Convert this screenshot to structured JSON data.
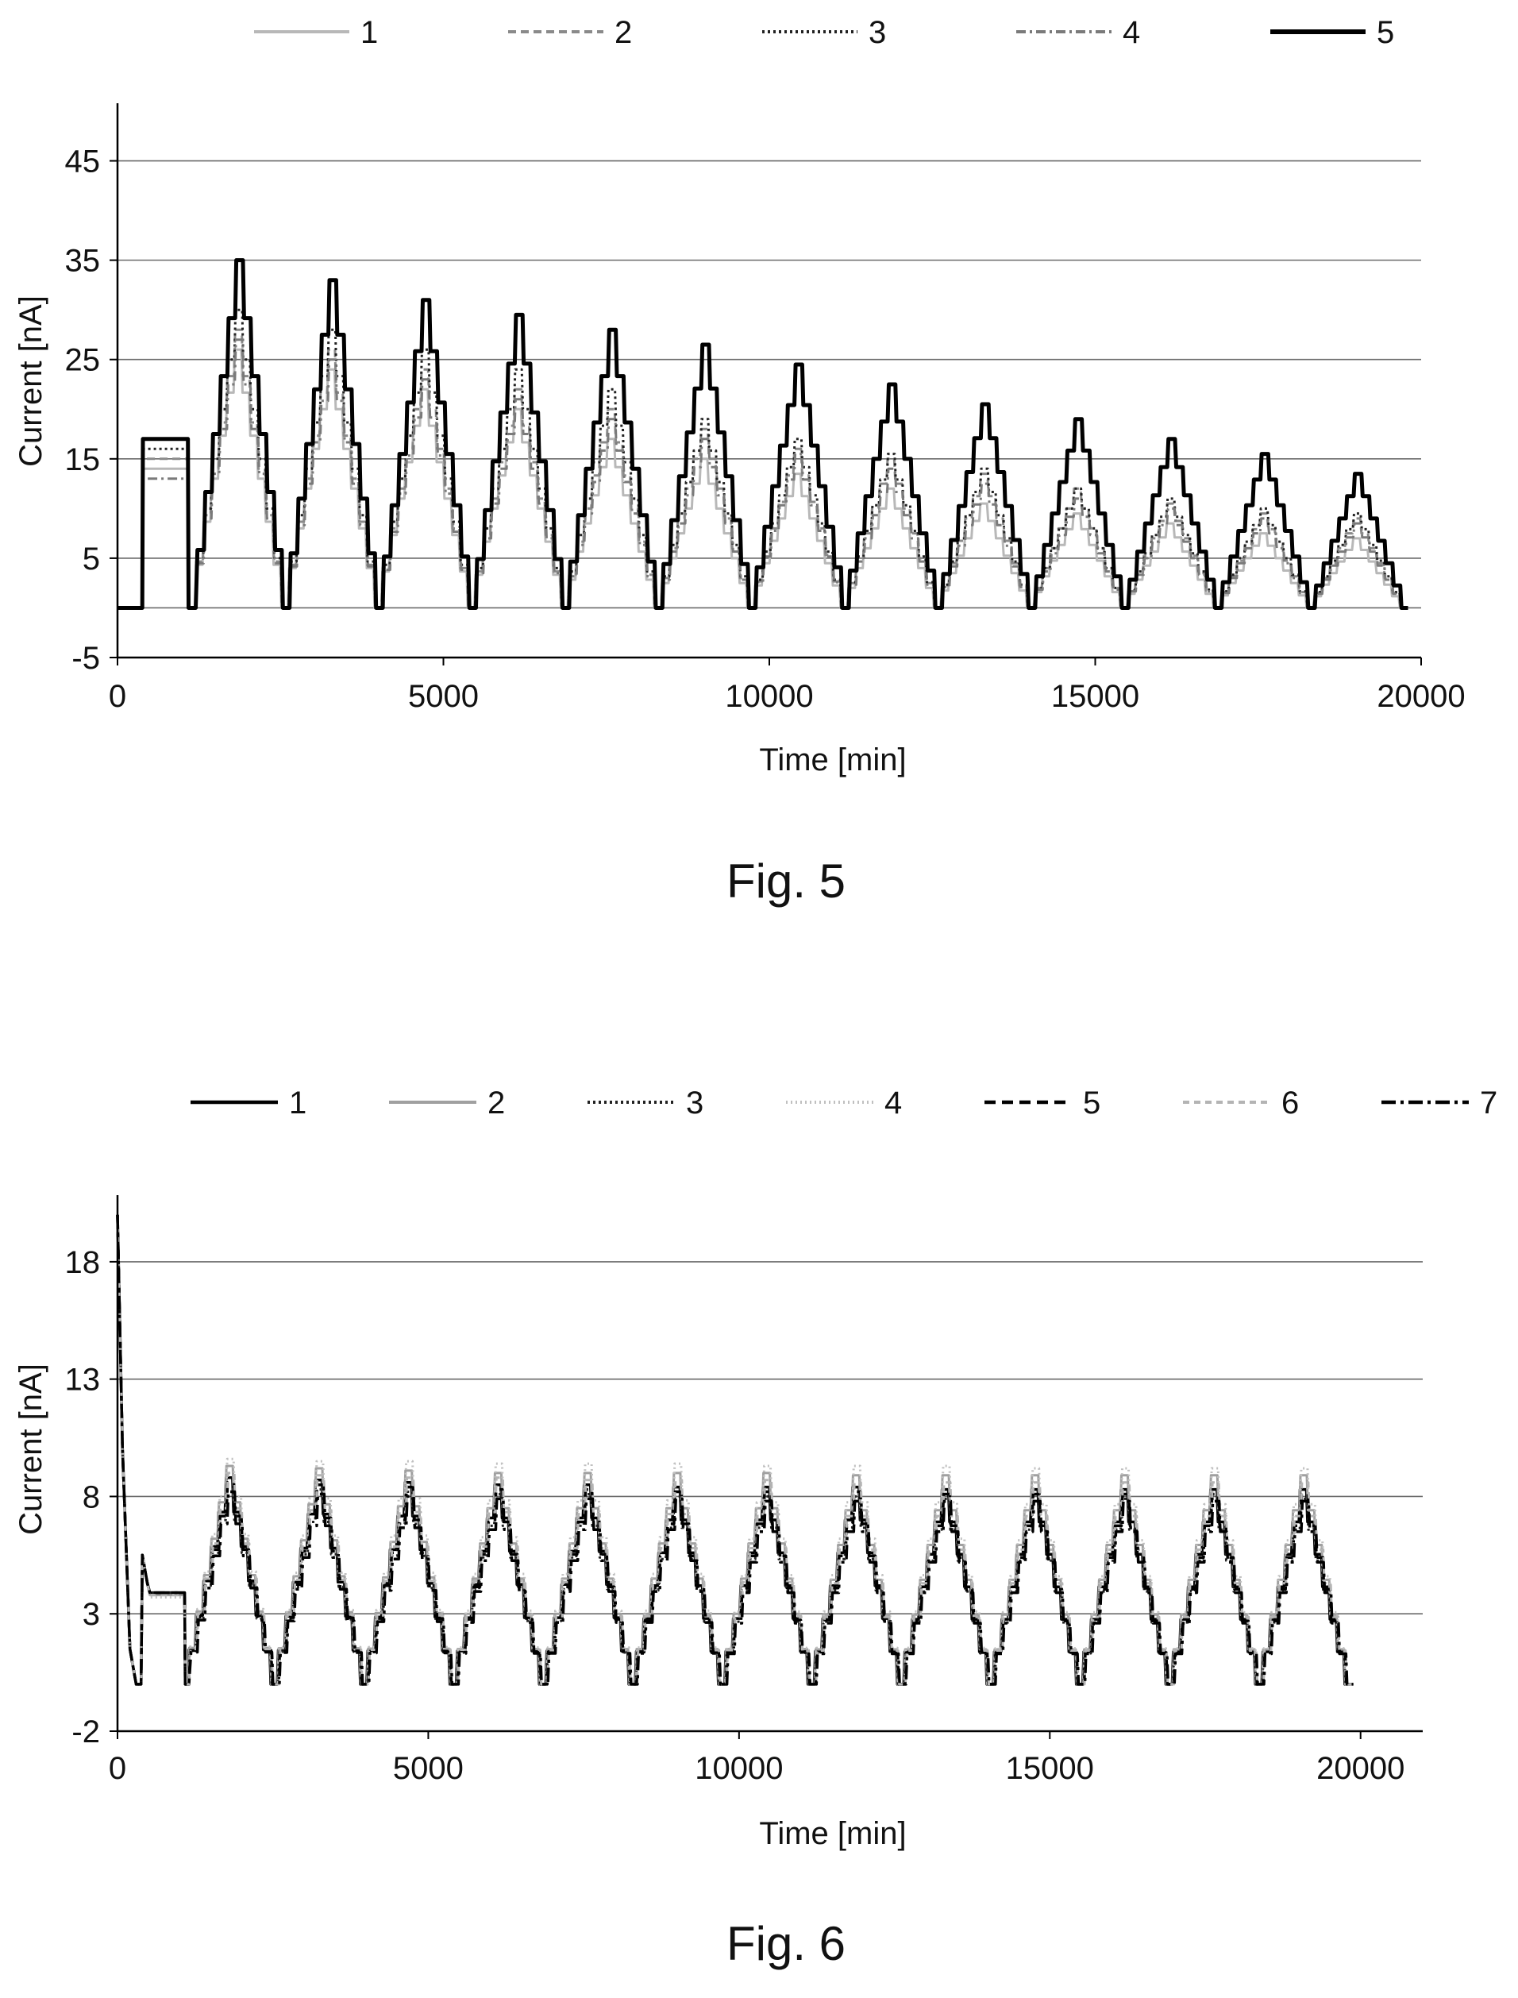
{
  "chart_data": [
    {
      "type": "line",
      "caption": "Fig. 5",
      "xlabel": "Time [min]",
      "ylabel": "Current [nA]",
      "xlim": [
        0,
        20000
      ],
      "ylim": [
        -5,
        50
      ],
      "x_ticks": [
        "0",
        "5000",
        "10000",
        "15000",
        "20000"
      ],
      "y_ticks": [
        "-5",
        "5",
        "15",
        "25",
        "35",
        "45"
      ],
      "y_gridlines": [
        0,
        5,
        15,
        25,
        35,
        45
      ],
      "grid": true,
      "legend_position": "top",
      "series": [
        {
          "name": "1",
          "style": "solid-light-gray",
          "color": "#b8b8b8",
          "plateau": 14,
          "peaks": [
            26,
            24,
            22,
            20,
            17,
            15,
            13.5,
            12,
            10.5,
            9.5,
            8.5,
            7.5,
            7
          ]
        },
        {
          "name": "2",
          "style": "dashed-gray",
          "color": "#8a8a8a",
          "plateau": 15,
          "peaks": [
            28,
            26,
            24,
            22,
            20,
            18,
            16,
            15,
            13.5,
            12,
            10.5,
            9.5,
            9
          ]
        },
        {
          "name": "3",
          "style": "dotted-dark",
          "color": "#222222",
          "plateau": 16,
          "peaks": [
            30,
            28,
            26,
            24,
            22,
            19,
            17,
            15.5,
            14,
            12,
            11,
            10,
            9.5
          ]
        },
        {
          "name": "4",
          "style": "dash-dot-gray",
          "color": "#7a7a7a",
          "plateau": 13,
          "peaks": [
            27,
            25,
            23,
            21,
            19,
            17,
            15.5,
            14,
            12.5,
            11,
            10,
            9,
            8.5
          ]
        },
        {
          "name": "5",
          "style": "solid-black-thick",
          "color": "#000000",
          "plateau": 17,
          "peaks": [
            35,
            33,
            31,
            29.5,
            28,
            26.5,
            24.5,
            22.5,
            20.5,
            19,
            17,
            15.5,
            13.5
          ]
        }
      ]
    },
    {
      "type": "line",
      "caption": "Fig. 6",
      "xlabel": "Time [min]",
      "ylabel": "Current [nA]",
      "xlim": [
        0,
        21000
      ],
      "ylim": [
        -2,
        20.5
      ],
      "x_ticks": [
        "0",
        "5000",
        "10000",
        "15000",
        "20000"
      ],
      "y_ticks": [
        "-2",
        "3",
        "8",
        "13",
        "18"
      ],
      "y_gridlines": [
        3,
        8,
        13,
        18
      ],
      "grid": true,
      "legend_position": "top",
      "series": [
        {
          "name": "1",
          "style": "solid-black",
          "color": "#000000",
          "plateau": 3.9,
          "peaks": [
            8.8,
            8.7,
            8.6,
            8.5,
            8.5,
            8.4,
            8.4,
            8.4,
            8.3,
            8.3,
            8.3,
            8.3,
            8.3
          ]
        },
        {
          "name": "2",
          "style": "solid-gray",
          "color": "#a0a0a0",
          "plateau": 3.8,
          "peaks": [
            9.3,
            9.2,
            9.1,
            9.0,
            9.0,
            9.0,
            9.0,
            8.9,
            8.9,
            8.9,
            8.9,
            8.9,
            8.9
          ]
        },
        {
          "name": "3",
          "style": "dotted-dark",
          "color": "#222222",
          "plateau": 3.9,
          "peaks": [
            8.4,
            8.3,
            8.2,
            8.1,
            8.1,
            8.0,
            8.0,
            8.0,
            7.9,
            7.9,
            7.9,
            7.9,
            7.9
          ]
        },
        {
          "name": "4",
          "style": "dotted-light",
          "color": "#c0c0c0",
          "plateau": 3.7,
          "peaks": [
            9.6,
            9.5,
            9.5,
            9.4,
            9.4,
            9.4,
            9.3,
            9.3,
            9.3,
            9.2,
            9.2,
            9.2,
            9.2
          ]
        },
        {
          "name": "5",
          "style": "dashed-black",
          "color": "#000000",
          "plateau": 3.9,
          "peaks": [
            8.6,
            8.5,
            8.4,
            8.3,
            8.3,
            8.2,
            8.2,
            8.2,
            8.1,
            8.1,
            8.1,
            8.1,
            8.1
          ]
        },
        {
          "name": "6",
          "style": "dashed-light-gray",
          "color": "#b4b4b4",
          "plateau": 3.8,
          "peaks": [
            9.0,
            8.9,
            8.8,
            8.8,
            8.7,
            8.7,
            8.7,
            8.6,
            8.6,
            8.6,
            8.6,
            8.6,
            8.6
          ]
        },
        {
          "name": "7",
          "style": "dash-dot-black",
          "color": "#000000",
          "plateau": 3.9,
          "peaks": [
            8.2,
            8.1,
            8.0,
            7.9,
            7.9,
            7.9,
            7.8,
            7.8,
            7.8,
            7.8,
            7.8,
            7.8,
            7.8
          ]
        }
      ]
    }
  ]
}
